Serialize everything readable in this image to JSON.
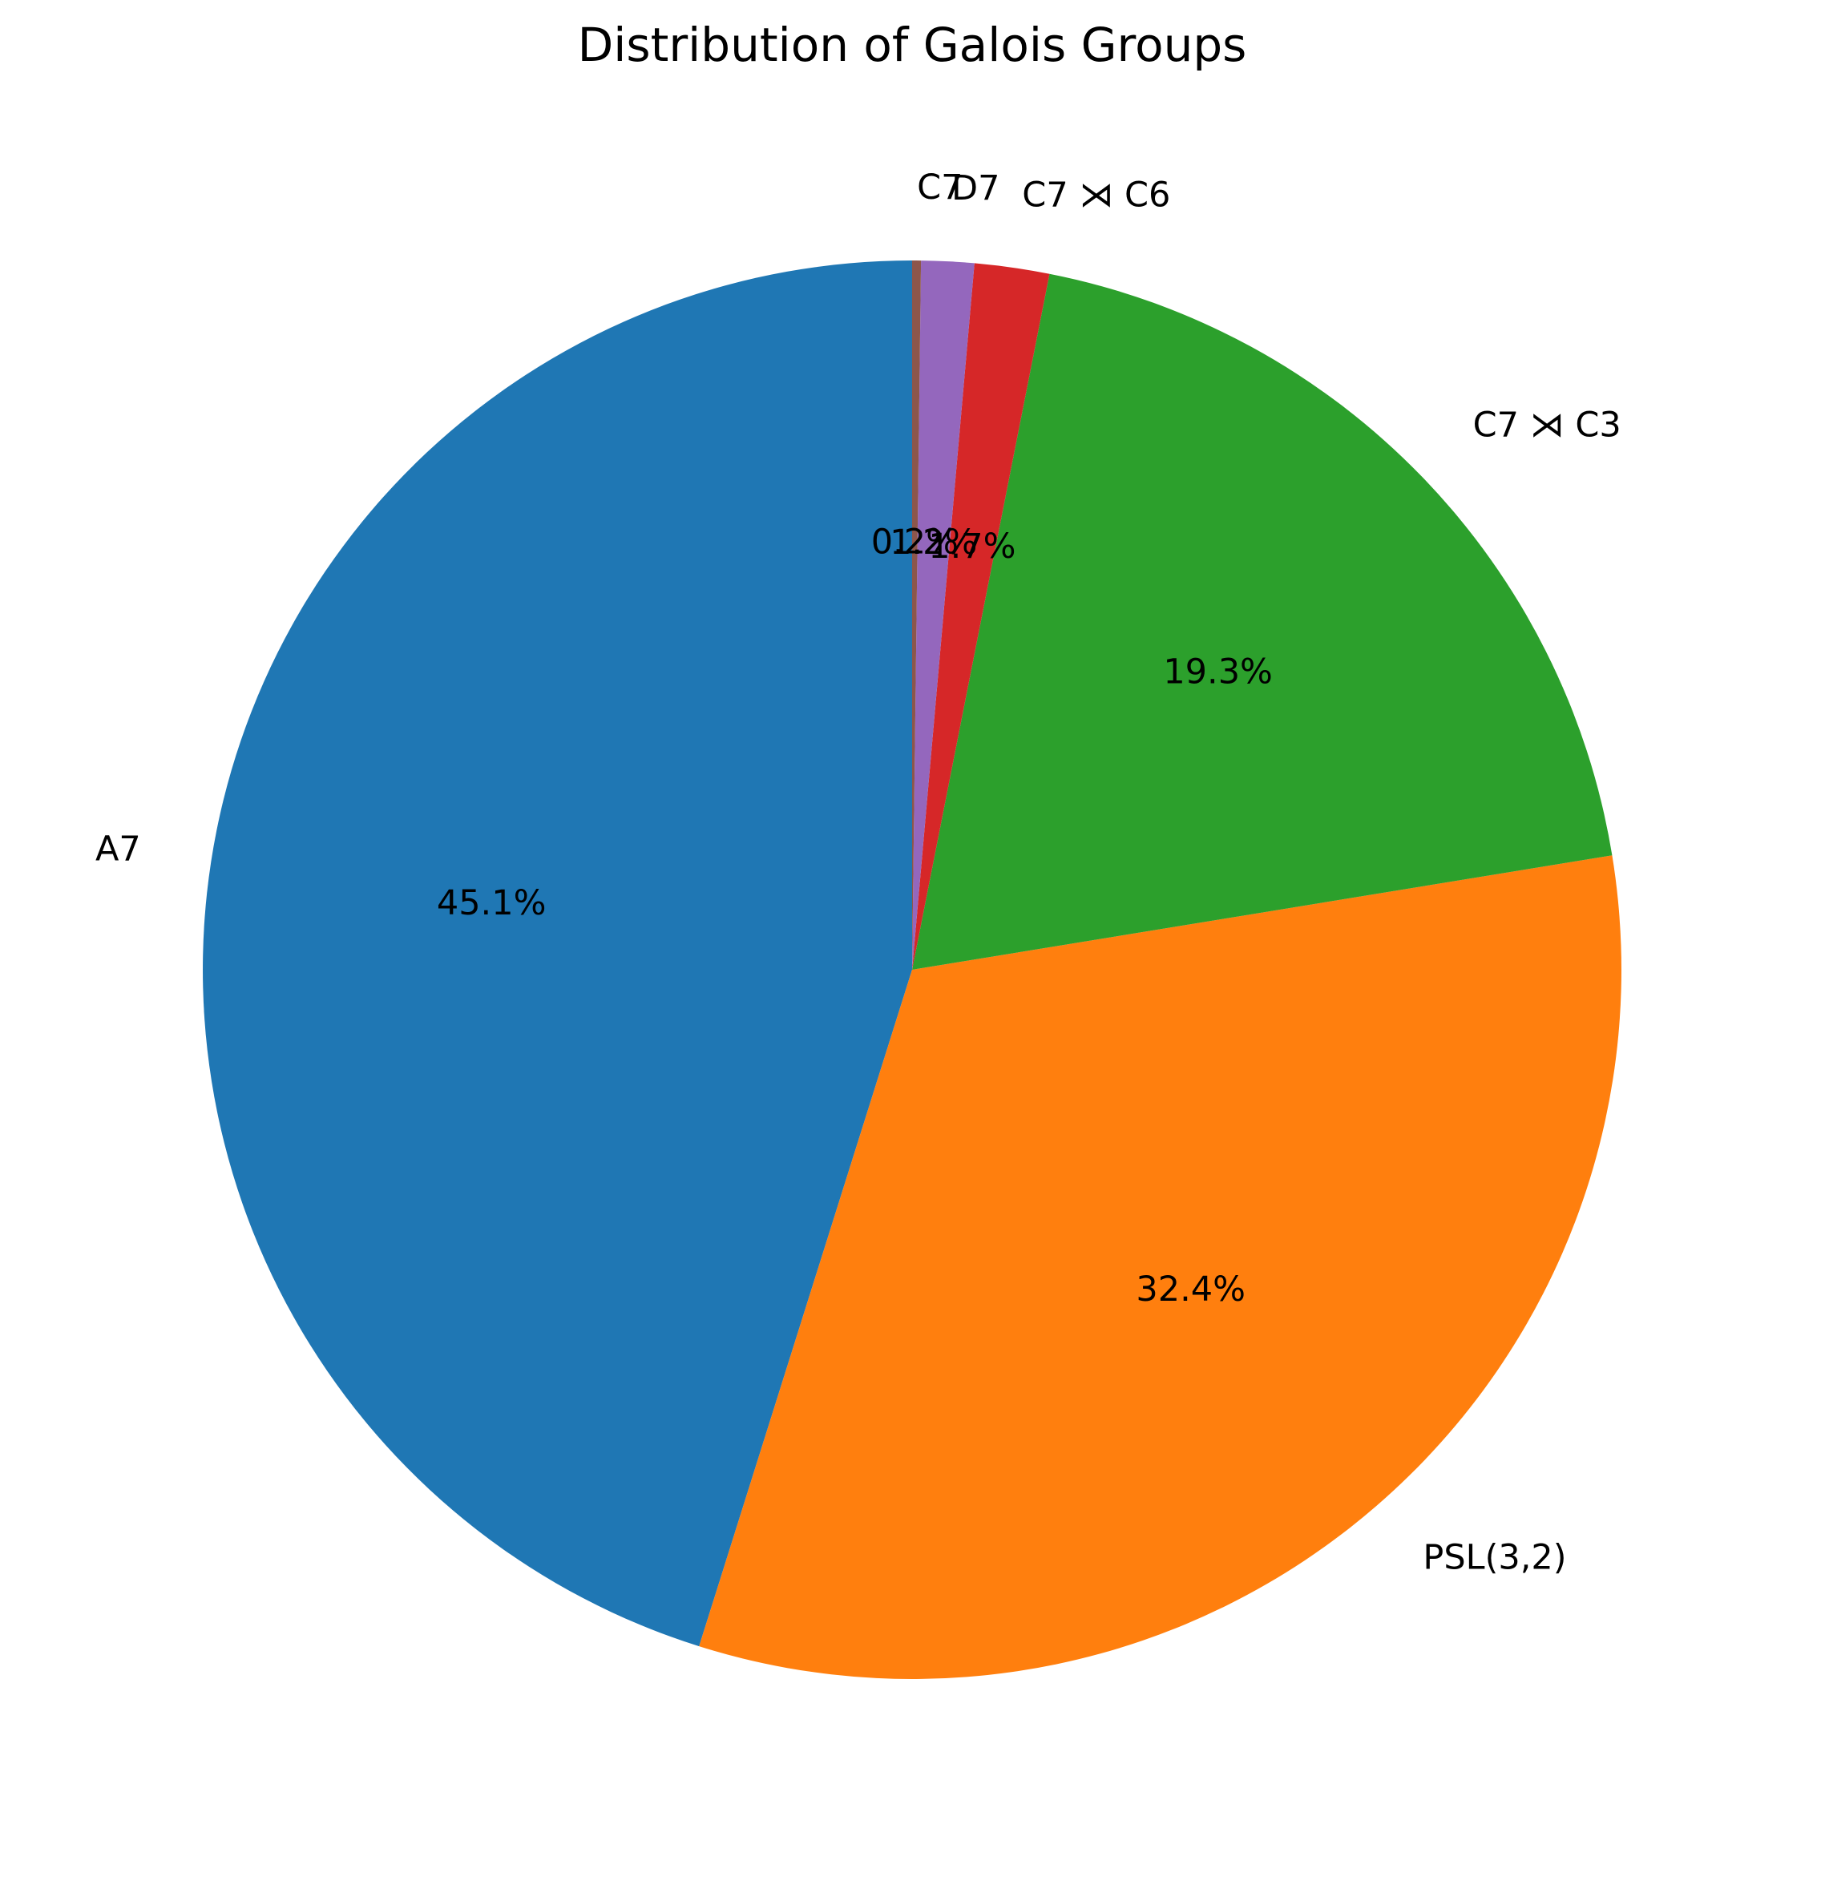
{
  "chart_data": {
    "type": "pie",
    "title": "Distribution of Galois Groups",
    "start_angle_deg": 90,
    "direction": "counterclockwise",
    "slices": [
      {
        "label": "A7",
        "value": 45.1,
        "pct_label": "45.1%",
        "color": "#1f77b4"
      },
      {
        "label": "PSL(3,2)",
        "value": 32.4,
        "pct_label": "32.4%",
        "color": "#ff7f0e"
      },
      {
        "label": "C7 ⋊ C3",
        "value": 19.3,
        "pct_label": "19.3%",
        "color": "#2ca02c"
      },
      {
        "label": "C7 ⋊ C6",
        "value": 1.7,
        "pct_label": "1.7%",
        "color": "#d62728"
      },
      {
        "label": "D7",
        "value": 1.2,
        "pct_label": "1.2%",
        "color": "#9467bd"
      },
      {
        "label": "C7",
        "value": 0.2,
        "pct_label": "0.2%",
        "color": "#8c564b"
      }
    ]
  }
}
